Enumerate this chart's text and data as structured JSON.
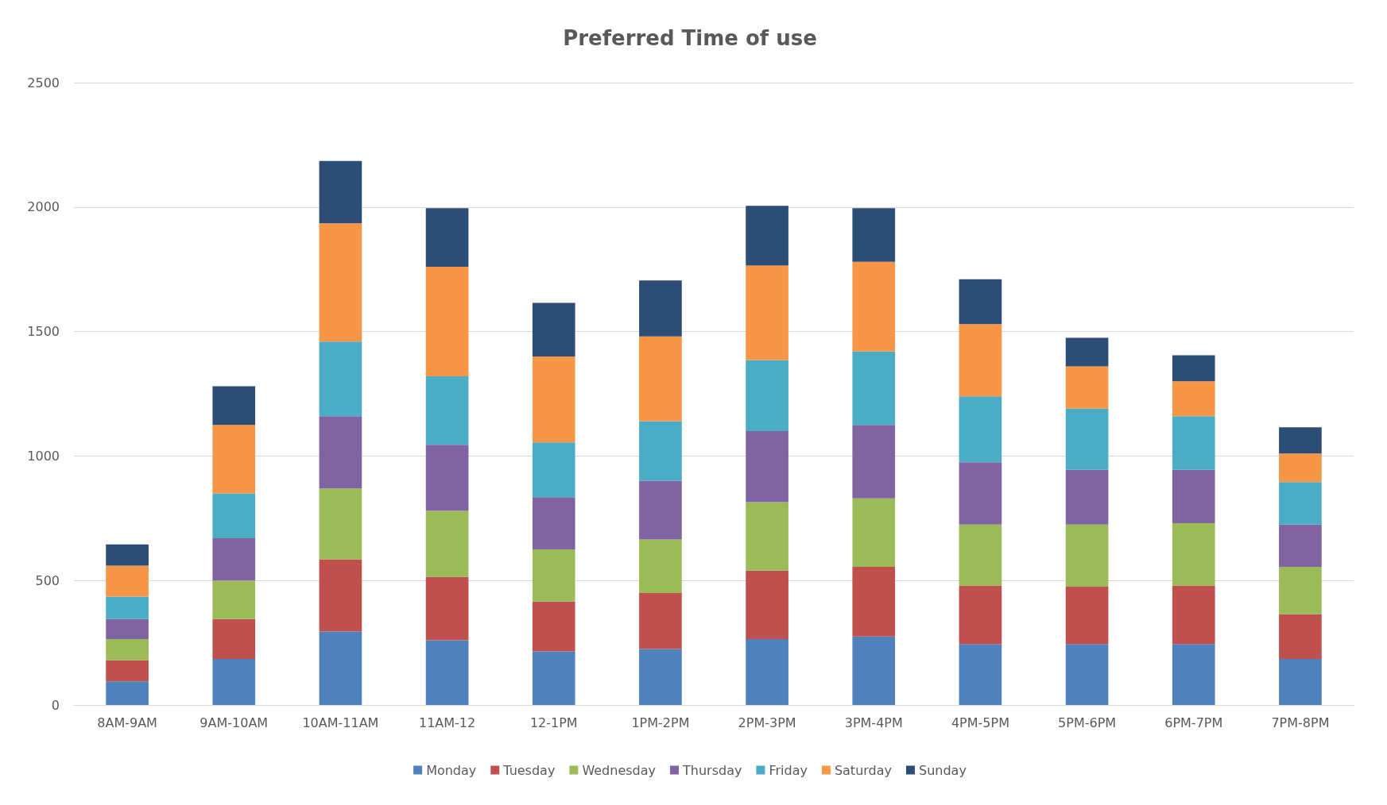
{
  "chart_data": {
    "type": "bar",
    "title": "Preferred Time of use",
    "stacked": true,
    "categories": [
      "8AM-9AM",
      "9AM-10AM",
      "10AM-11AM",
      "11AM-12",
      "12-1PM",
      "1PM-2PM",
      "2PM-3PM",
      "3PM-4PM",
      "4PM-5PM",
      "5PM-6PM",
      "6PM-7PM",
      "7PM-8PM"
    ],
    "series": [
      {
        "name": "Monday",
        "color": "#4f81bd",
        "values": [
          95,
          185,
          295,
          260,
          215,
          225,
          265,
          275,
          245,
          245,
          245,
          185
        ]
      },
      {
        "name": "Tuesday",
        "color": "#c0504d",
        "values": [
          85,
          160,
          290,
          255,
          200,
          225,
          275,
          280,
          235,
          230,
          235,
          180
        ]
      },
      {
        "name": "Wednesday",
        "color": "#9bbb59",
        "values": [
          85,
          155,
          285,
          265,
          210,
          215,
          275,
          275,
          245,
          250,
          250,
          190
        ]
      },
      {
        "name": "Thursday",
        "color": "#8064a2",
        "values": [
          80,
          170,
          290,
          265,
          210,
          235,
          285,
          295,
          250,
          220,
          215,
          170
        ]
      },
      {
        "name": "Friday",
        "color": "#4bacc6",
        "values": [
          90,
          180,
          300,
          275,
          220,
          240,
          285,
          295,
          265,
          245,
          215,
          170
        ]
      },
      {
        "name": "Saturday",
        "color": "#f79646",
        "values": [
          125,
          275,
          475,
          440,
          345,
          340,
          380,
          360,
          290,
          170,
          140,
          115
        ]
      },
      {
        "name": "Sunday",
        "color": "#2c4d75",
        "values": [
          85,
          155,
          250,
          235,
          215,
          225,
          240,
          215,
          180,
          115,
          105,
          105
        ]
      }
    ],
    "ylim": [
      0,
      2500
    ],
    "yticks": [
      0,
      500,
      1000,
      1500,
      2000,
      2500
    ],
    "grid": "y",
    "legend": "bottom"
  }
}
